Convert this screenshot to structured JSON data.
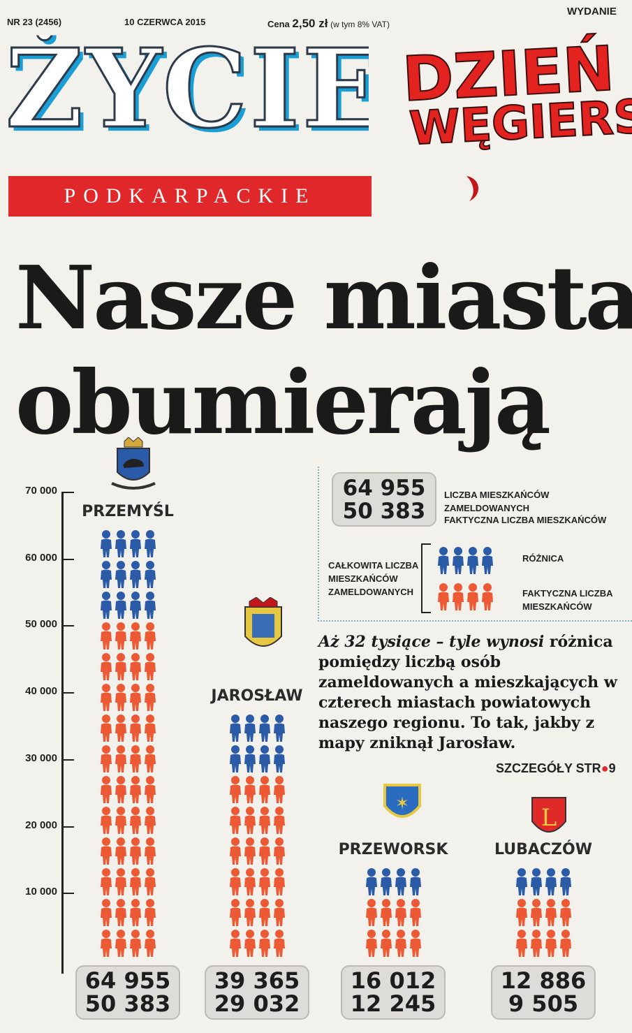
{
  "topbar": {
    "issue": "NR 23 (2456)",
    "date": "10 CZERWCA 2015",
    "price_prefix": "Cena",
    "price": "2,50 zł",
    "vat": "(w tym 8% VAT)",
    "edition": "WYDANIE"
  },
  "masthead": {
    "title": "ŻYCIE",
    "subtitle": "PODKARPACKIE",
    "promo_line1": "DZIEŃ",
    "promo_line2": "WĘGIERSKI"
  },
  "headline": {
    "line1": "Nasze miasta",
    "line2": "obumierają"
  },
  "colors": {
    "registered": "#2b5aa6",
    "actual": "#ec5a35",
    "accent_red": "#e0282b",
    "masthead_blue": "#1a9ed6"
  },
  "legend": {
    "sample_registered": "64 955",
    "sample_actual": "50 383",
    "registered_label": "LICZBA MIESZKAŃCÓW ZAMELDOWANYCH",
    "actual_label": "FAKTYCZNA LICZBA MIESZKAŃCÓW",
    "total_label_1": "CAŁKOWITA LICZBA",
    "total_label_2": "MIESZKAŃCÓW",
    "total_label_3": "ZAMELDOWANYCH",
    "difference_label": "RÓŻNICA",
    "actual_label_1": "FAKTYCZNA LICZBA",
    "actual_label_2": "MIESZKAŃCÓW"
  },
  "callout": {
    "lead": "Aż 32 tysiące – tyle wynosi",
    "body": "różnica pomiędzy liczbą osób zameldowanych a mieszkających w czterech miastach powiatowych naszego regionu. To tak, jakby z mapy zniknął Jarosław.",
    "details_text": "SZCZEGÓŁY STR",
    "details_page": "9"
  },
  "chart_data": {
    "type": "bar",
    "y_ticks": [
      "70 000",
      "60 000",
      "50 000",
      "40 000",
      "30 000",
      "20 000",
      "10 000"
    ],
    "y_tick_values": [
      70000,
      60000,
      50000,
      40000,
      30000,
      20000,
      10000
    ],
    "ylim": [
      0,
      70000
    ],
    "categories": [
      "PRZEMYŚL",
      "JAROSŁAW",
      "PRZEWORSK",
      "LUBACZÓW"
    ],
    "series": [
      {
        "name": "LICZBA MIESZKAŃCÓW ZAMELDOWANYCH",
        "values": [
          64955,
          39365,
          16012,
          12886
        ]
      },
      {
        "name": "FAKTYCZNA LICZBA MIESZKAŃCÓW",
        "values": [
          50383,
          29032,
          12245,
          9505
        ]
      }
    ],
    "labels": {
      "registered": [
        "64 955",
        "39 365",
        "16 012",
        "12 886"
      ],
      "actual": [
        "50 383",
        "29 032",
        "12 245",
        "9 505"
      ]
    }
  }
}
